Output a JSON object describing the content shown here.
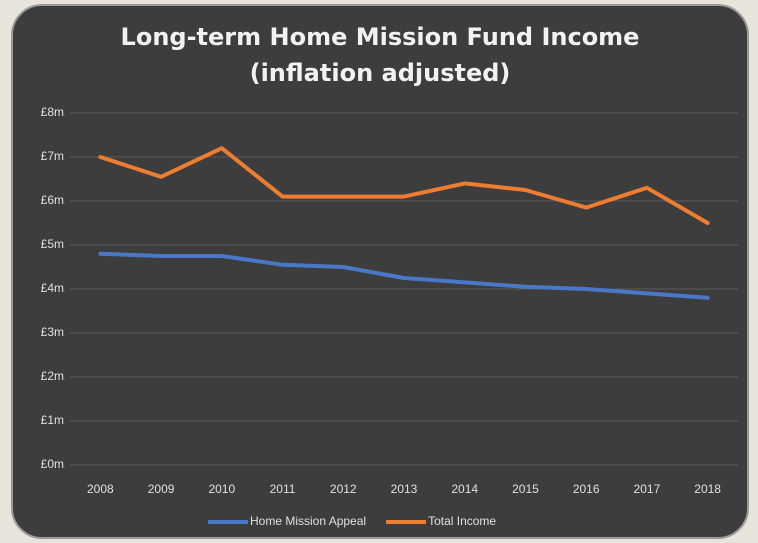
{
  "chart_data": {
    "type": "line",
    "title": [
      "Long-term Home Mission Fund Income",
      "(inflation adjusted)"
    ],
    "categories": [
      "2008",
      "2009",
      "2010",
      "2011",
      "2012",
      "2013",
      "2014",
      "2015",
      "2016",
      "2017",
      "2018"
    ],
    "series": [
      {
        "name": "Home Mission Appeal",
        "color": "#4a78c8",
        "values": [
          4.8,
          4.75,
          4.75,
          4.55,
          4.5,
          4.25,
          4.15,
          4.05,
          4.0,
          3.9,
          3.8
        ]
      },
      {
        "name": "Total Income",
        "color": "#ed7d31",
        "values": [
          7.0,
          6.55,
          7.2,
          6.1,
          6.1,
          6.1,
          6.4,
          6.25,
          5.85,
          6.3,
          5.5
        ]
      }
    ],
    "ylim": [
      0,
      8
    ],
    "yticks": [
      {
        "value": 0,
        "label": "£0m"
      },
      {
        "value": 1,
        "label": "£1m"
      },
      {
        "value": 2,
        "label": "£2m"
      },
      {
        "value": 3,
        "label": "£3m"
      },
      {
        "value": 4,
        "label": "£4m"
      },
      {
        "value": 5,
        "label": "£5m"
      },
      {
        "value": 6,
        "label": "£6m"
      },
      {
        "value": 7,
        "label": "£7m"
      },
      {
        "value": 8,
        "label": "£8m"
      }
    ],
    "grid": true,
    "legend": "bottom"
  }
}
